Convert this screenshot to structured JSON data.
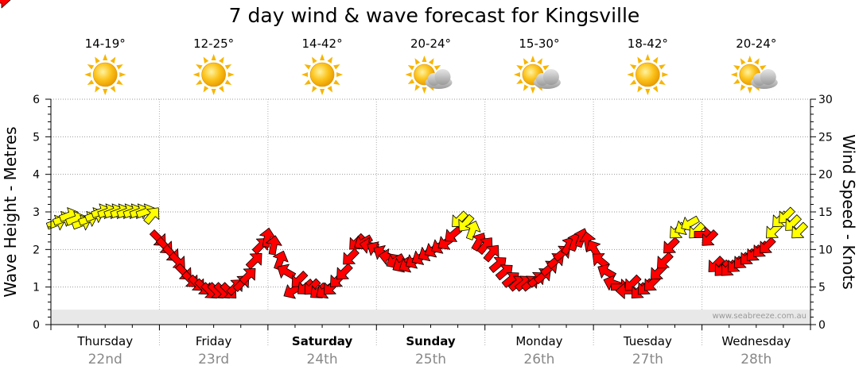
{
  "colors": {
    "strong_wind": "#ff0000",
    "light_wind": "#ffff00",
    "wave_area": "#e8e8e8",
    "sun": "#f7b500",
    "cloud": "#b8b8b8"
  },
  "chart_data": {
    "type": "line",
    "title": "7 day wind & wave forecast for Kingsville",
    "ylabel": "Wave Height - Metres",
    "y2label": "Wind Speed - Knots",
    "ylim": [
      0,
      6
    ],
    "y2lim": [
      0,
      30
    ],
    "yticks": [
      "0",
      "1",
      "2",
      "3",
      "4",
      "5",
      "6"
    ],
    "y2ticks": [
      "0",
      "5",
      "10",
      "15",
      "20",
      "25",
      "30"
    ],
    "grid": true,
    "watermark": "www.seabreeze.com.au",
    "days": [
      {
        "name": "Thursday",
        "date": "22nd",
        "bold": false,
        "temp": "14-19°",
        "weather": "sunny-icon"
      },
      {
        "name": "Friday",
        "date": "23rd",
        "bold": false,
        "temp": "12-25°",
        "weather": "sunny-icon"
      },
      {
        "name": "Saturday",
        "date": "24th",
        "bold": true,
        "temp": "14-42°",
        "weather": "sunny-icon"
      },
      {
        "name": "Sunday",
        "date": "25th",
        "bold": true,
        "temp": "20-24°",
        "weather": "partly-cloudy-icon"
      },
      {
        "name": "Monday",
        "date": "26th",
        "bold": false,
        "temp": "15-30°",
        "weather": "partly-cloudy-icon"
      },
      {
        "name": "Tuesday",
        "date": "27th",
        "bold": false,
        "temp": "18-42°",
        "weather": "sunny-icon"
      },
      {
        "name": "Wednesday",
        "date": "28th",
        "bold": false,
        "temp": "20-24°",
        "weather": "partly-cloudy-icon"
      }
    ],
    "wave_height_m": [
      0.4,
      0.4,
      0.4,
      0.4,
      0.4,
      0.4,
      0.4,
      0.4,
      0.4,
      0.4,
      0.4,
      0.4,
      0.4,
      0.4,
      0.4,
      0.4,
      0.4,
      0.4,
      0.4,
      0.4,
      0.4,
      0.4,
      0.4,
      0.4,
      0.4,
      0.4,
      0.4,
      0.4,
      0.4,
      0.4,
      0.4,
      0.4,
      0.4,
      0.4,
      0.4,
      0.4,
      0.4,
      0.4,
      0.4,
      0.4,
      0.4,
      0.4,
      0.4,
      0.4,
      0.4,
      0.4,
      0.4,
      0.4,
      0.4,
      0.4,
      0.4,
      0.4,
      0.4,
      0.4,
      0.4,
      0.4
    ],
    "wind_knots": [
      13.5,
      14,
      14.5,
      14,
      13.5,
      14,
      14.5,
      15,
      15,
      15,
      15,
      15,
      15,
      15,
      15,
      14.5,
      11.5,
      10.5,
      9.5,
      8.5,
      7,
      6,
      5.5,
      5,
      4.5,
      4.5,
      4.5,
      4.5,
      5,
      5.5,
      6.5,
      8.5,
      10.5,
      11.5,
      10.5,
      8.5,
      7,
      4.5,
      6,
      5,
      5,
      4.5,
      4.5,
      5,
      6,
      7,
      9,
      11,
      11,
      10.5,
      10,
      9.5,
      9,
      8.5,
      8,
      8,
      8.5,
      9,
      9.5,
      10,
      10.5,
      11,
      12,
      14,
      13.5,
      12.5,
      11,
      10.5,
      9.5,
      8,
      7,
      6,
      5.5,
      5.5,
      5.5,
      6,
      6.5,
      7.5,
      8.5,
      9.5,
      10.5,
      11,
      11.5,
      11,
      10,
      8.5,
      7,
      5.5,
      5,
      4.5,
      5.5,
      4.5,
      5,
      5.5,
      7,
      8.5,
      10.5,
      12.5,
      13,
      13.5,
      12.5,
      12,
      11.5,
      8,
      7.5,
      7.5,
      8,
      8.5,
      9,
      9.5,
      10,
      10.5,
      12.5,
      14,
      14.5,
      13.5,
      12.5,
      11.5
    ],
    "wind_direction_deg": [
      250,
      250,
      250,
      250,
      250,
      250,
      250,
      250,
      250,
      250,
      250,
      250,
      250,
      250,
      250,
      220,
      315,
      315,
      315,
      315,
      315,
      315,
      315,
      315,
      315,
      315,
      315,
      315,
      225,
      225,
      225,
      225,
      225,
      190,
      190,
      200,
      120,
      60,
      45,
      50,
      45,
      50,
      55,
      45,
      45,
      45,
      45,
      45,
      60,
      100,
      120,
      120,
      100,
      60,
      60,
      60,
      60,
      60,
      60,
      60,
      60,
      55,
      50,
      45,
      40,
      200,
      210,
      220,
      220,
      230,
      230,
      230,
      230,
      230,
      230,
      230,
      230,
      230,
      230,
      230,
      210,
      200,
      200,
      170,
      150,
      130,
      120,
      110,
      270,
      90,
      45,
      45,
      45,
      45,
      45,
      45,
      45,
      45,
      60,
      60,
      45,
      270,
      45,
      45,
      45,
      45,
      45,
      45,
      45,
      45,
      45,
      45,
      45,
      45,
      45,
      45,
      45
    ],
    "wind_light_threshold_knots": 12.5
  }
}
